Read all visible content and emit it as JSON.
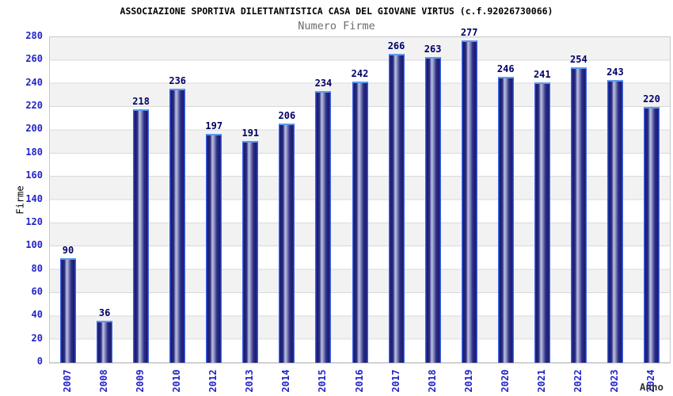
{
  "chart_data": {
    "type": "bar",
    "title": "ASSOCIAZIONE SPORTIVA DILETTANTISTICA CASA DEL GIOVANE VIRTUS (c.f.92026730066)",
    "subtitle": "Numero Firme",
    "xlabel": "Anno",
    "ylabel": "Firme",
    "categories": [
      "2007",
      "2008",
      "2009",
      "2010",
      "2012",
      "2013",
      "2014",
      "2015",
      "2016",
      "2017",
      "2018",
      "2019",
      "2020",
      "2021",
      "2022",
      "2023",
      "2024"
    ],
    "values": [
      90,
      36,
      218,
      236,
      197,
      191,
      206,
      234,
      242,
      266,
      263,
      277,
      246,
      241,
      254,
      243,
      220
    ],
    "ylim": [
      0,
      280
    ],
    "yticks": [
      0,
      20,
      40,
      60,
      80,
      100,
      120,
      140,
      160,
      180,
      200,
      220,
      240,
      260,
      280
    ],
    "grid": "horizontal-gridlines-with-alternating-bands",
    "legend": "none",
    "colors": {
      "bar_edge": "#3b64e6",
      "bar_top_edge": "#5b9bf2",
      "bar_dark": "#1a1a6e",
      "bar_light": "#bcc2e0",
      "tick_label": "#2323c8",
      "value_label": "#000066",
      "title": "#000000",
      "subtitle": "#6b6b6b",
      "band_gray": "#f2f2f2",
      "band_white": "#ffffff",
      "gridline": "#d9d9d9",
      "plot_border": "#c9c9c9",
      "x_axis_title": "#333333"
    }
  }
}
